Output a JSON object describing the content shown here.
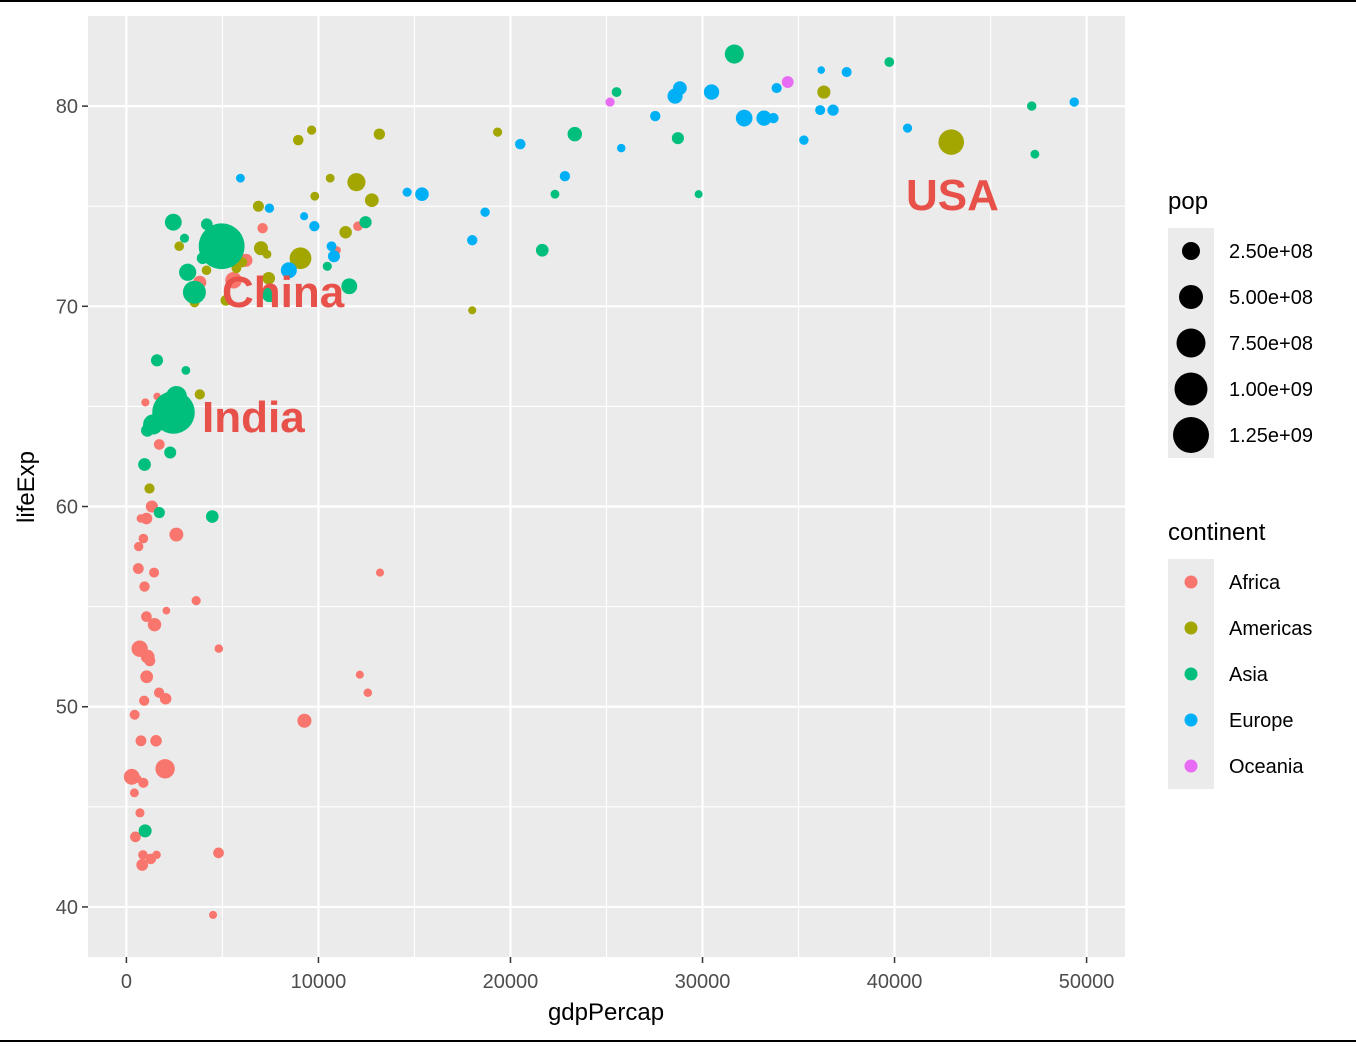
{
  "chart_data": {
    "type": "scatter",
    "xlabel": "gdpPercap",
    "ylabel": "lifeExp",
    "xlim": [
      -2000,
      52000
    ],
    "ylim": [
      37.5,
      84.5
    ],
    "xticks": [
      0,
      10000,
      20000,
      30000,
      40000,
      50000
    ],
    "yticks": [
      40,
      50,
      60,
      70,
      80
    ],
    "xtick_labels": [
      "0",
      "10000",
      "20000",
      "30000",
      "40000",
      "50000"
    ],
    "ytick_labels": [
      "40",
      "50",
      "60",
      "70",
      "80"
    ],
    "grid": true,
    "colors": {
      "Africa": "#F8766D",
      "Americas": "#A3A500",
      "Asia": "#00BF7D",
      "Europe": "#00B0F6",
      "Oceania": "#E76BF3",
      "panel": "#EBEBEB",
      "annotation": "#E8514A"
    },
    "legend": {
      "position": "right",
      "size": {
        "title": "pop",
        "labels": [
          "2.50e+08",
          "5.00e+08",
          "7.50e+08",
          "1.00e+09",
          "1.25e+09"
        ],
        "values": [
          250000000,
          500000000,
          750000000,
          1000000000,
          1250000000
        ]
      },
      "color": {
        "title": "continent",
        "labels": [
          "Africa",
          "Americas",
          "Asia",
          "Europe",
          "Oceania"
        ]
      }
    },
    "annotations": [
      {
        "text": "China",
        "x": 4959,
        "y": 72.96
      },
      {
        "text": "India",
        "x": 2452,
        "y": 64.7
      },
      {
        "text": "USA",
        "x": 42952,
        "y": 78.24
      }
    ],
    "series": [
      {
        "name": "Africa",
        "points": [
          [
            6223,
            72.3,
            33
          ],
          [
            4797,
            42.7,
            12
          ],
          [
            1441,
            56.7,
            8
          ],
          [
            12570,
            50.7,
            2
          ],
          [
            1217,
            52.3,
            14
          ],
          [
            430,
            49.6,
            8
          ],
          [
            2042,
            50.4,
            18
          ],
          [
            706,
            44.7,
            4
          ],
          [
            1704,
            50.7,
            10
          ],
          [
            986,
            65.2,
            1
          ],
          [
            278,
            46.5,
            68
          ],
          [
            3633,
            55.3,
            4
          ],
          [
            1544,
            48.3,
            18
          ],
          [
            2082,
            54.8,
            0.5
          ],
          [
            5581,
            71.3,
            80
          ],
          [
            12154,
            51.6,
            1
          ],
          [
            641,
            58.0,
            5
          ],
          [
            691,
            52.9,
            76
          ],
          [
            13206,
            56.7,
            1
          ],
          [
            753,
            59.4,
            2
          ],
          [
            1327,
            60.0,
            23
          ],
          [
            943,
            56.0,
            10
          ],
          [
            580,
            46.4,
            1
          ],
          [
            1463,
            54.1,
            36
          ],
          [
            1569,
            42.6,
            2
          ],
          [
            415,
            45.7,
            3
          ],
          [
            12057,
            74.0,
            6
          ],
          [
            1045,
            59.4,
            19
          ],
          [
            759,
            48.3,
            13
          ],
          [
            1042,
            54.5,
            12
          ],
          [
            1803,
            64.2,
            3
          ],
          [
            10957,
            72.8,
            1
          ],
          [
            3820,
            71.2,
            33
          ],
          [
            824,
            42.1,
            20
          ],
          [
            4811,
            52.9,
            2
          ],
          [
            620,
            56.9,
            13
          ],
          [
            2014,
            46.9,
            135
          ],
          [
            882,
            46.2,
            9
          ],
          [
            1598,
            65.5,
            0.2
          ],
          [
            1712,
            63.1,
            12
          ],
          [
            862,
            42.6,
            6
          ],
          [
            926,
            50.3,
            9
          ],
          [
            9270,
            49.3,
            44
          ],
          [
            2602,
            58.6,
            42
          ],
          [
            4513,
            39.6,
            1
          ],
          [
            1107,
            52.5,
            40
          ],
          [
            883,
            58.4,
            6
          ],
          [
            7093,
            73.9,
            10
          ],
          [
            1056,
            51.5,
            29
          ],
          [
            1271,
            42.4,
            11
          ],
          [
            470,
            43.5,
            12
          ]
        ]
      },
      {
        "name": "Americas",
        "points": [
          [
            12779,
            75.3,
            40
          ],
          [
            3822,
            65.6,
            9
          ],
          [
            9066,
            72.4,
            190
          ],
          [
            36319,
            80.7,
            33
          ],
          [
            13172,
            78.6,
            16
          ],
          [
            7007,
            72.9,
            44
          ],
          [
            9645,
            78.8,
            4
          ],
          [
            8948,
            78.3,
            11
          ],
          [
            6025,
            72.2,
            9
          ],
          [
            6873,
            75.0,
            14
          ],
          [
            5728,
            71.9,
            7
          ],
          [
            5186,
            70.3,
            13
          ],
          [
            1202,
            60.9,
            9
          ],
          [
            3548,
            70.2,
            8
          ],
          [
            7321,
            72.6,
            3
          ],
          [
            11978,
            76.2,
            108
          ],
          [
            2749,
            73.0,
            6
          ],
          [
            9809,
            75.5,
            3
          ],
          [
            4172,
            71.8,
            6
          ],
          [
            7409,
            71.4,
            28
          ],
          [
            19329,
            78.7,
            4
          ],
          [
            18009,
            69.8,
            1
          ],
          [
            42952,
            78.2,
            301
          ],
          [
            10611,
            76.4,
            3
          ],
          [
            11416,
            73.7,
            26
          ]
        ]
      },
      {
        "name": "Asia",
        "points": [
          [
            975,
            43.8,
            32
          ],
          [
            29796,
            75.6,
            1
          ],
          [
            1391,
            64.1,
            150
          ],
          [
            1714,
            59.7,
            15
          ],
          [
            4959,
            73.0,
            1319
          ],
          [
            39725,
            82.2,
            7
          ],
          [
            2452,
            64.7,
            1110
          ],
          [
            3541,
            70.7,
            224
          ],
          [
            11606,
            71.0,
            69
          ],
          [
            4471,
            59.5,
            28
          ],
          [
            25523,
            80.7,
            7
          ],
          [
            31656,
            82.6,
            127
          ],
          [
            4519,
            72.5,
            6
          ],
          [
            1593,
            67.3,
            23
          ],
          [
            23348,
            78.6,
            49
          ],
          [
            47307,
            77.6,
            3
          ],
          [
            10461,
            72.0,
            4
          ],
          [
            12452,
            74.2,
            24
          ],
          [
            3096,
            66.8,
            3
          ],
          [
            944,
            62.1,
            29
          ],
          [
            1091,
            63.8,
            28
          ],
          [
            22316,
            75.6,
            3
          ],
          [
            2606,
            65.5,
            169
          ],
          [
            3190,
            71.7,
            91
          ],
          [
            21655,
            72.8,
            28
          ],
          [
            47143,
            80.0,
            5
          ],
          [
            3970,
            72.4,
            20
          ],
          [
            4185,
            74.1,
            19
          ],
          [
            28718,
            78.4,
            23
          ],
          [
            7458,
            70.6,
            65
          ],
          [
            2442,
            74.2,
            85
          ],
          [
            3025,
            73.4,
            4
          ],
          [
            2281,
            62.7,
            22
          ]
        ]
      },
      {
        "name": "Europe",
        "points": [
          [
            5937,
            76.4,
            3
          ],
          [
            36126,
            79.8,
            8
          ],
          [
            33693,
            79.4,
            10
          ],
          [
            7447,
            74.9,
            5
          ],
          [
            10681,
            73.0,
            7
          ],
          [
            14619,
            75.7,
            4
          ],
          [
            22834,
            76.5,
            10
          ],
          [
            35278,
            78.3,
            5
          ],
          [
            33207,
            79.3,
            5
          ],
          [
            30470,
            80.7,
            61
          ],
          [
            32170,
            79.4,
            82
          ],
          [
            27538,
            79.5,
            10
          ],
          [
            18009,
            73.3,
            10
          ],
          [
            36181,
            81.8,
            0.3
          ],
          [
            40676,
            78.9,
            4
          ],
          [
            28570,
            80.5,
            58
          ],
          [
            9254,
            74.5,
            1
          ],
          [
            36798,
            79.8,
            16
          ],
          [
            49357,
            80.2,
            5
          ],
          [
            15390,
            75.6,
            38
          ],
          [
            20510,
            78.1,
            11
          ],
          [
            10808,
            72.5,
            22
          ],
          [
            9787,
            74.0,
            10
          ],
          [
            18678,
            74.7,
            5
          ],
          [
            25768,
            77.9,
            2
          ],
          [
            28821,
            80.9,
            40
          ],
          [
            33860,
            80.9,
            9
          ],
          [
            37506,
            81.7,
            8
          ],
          [
            8458,
            71.8,
            71
          ],
          [
            33203,
            79.4,
            60
          ]
        ]
      },
      {
        "name": "Oceania",
        "points": [
          [
            34435,
            81.2,
            20
          ],
          [
            25185,
            80.2,
            4
          ]
        ]
      }
    ]
  }
}
